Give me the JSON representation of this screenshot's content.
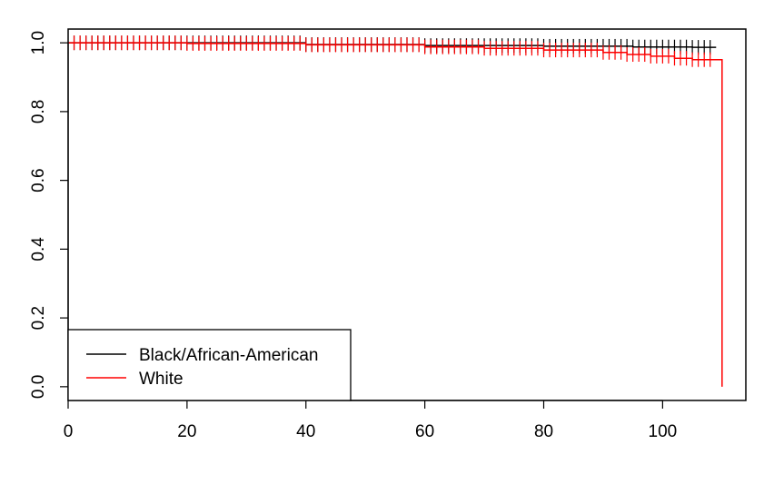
{
  "chart_data": {
    "type": "line",
    "title": "",
    "xlabel": "",
    "ylabel": "",
    "xlim": [
      0,
      114
    ],
    "ylim": [
      -0.04,
      1.04
    ],
    "x_ticks": [
      0,
      20,
      40,
      60,
      80,
      100
    ],
    "y_ticks": [
      0.0,
      0.2,
      0.4,
      0.6,
      0.8,
      1.0
    ],
    "x_tick_labels": [
      "0",
      "20",
      "40",
      "60",
      "80",
      "100"
    ],
    "y_tick_labels": [
      "0.0",
      "0.2",
      "0.4",
      "0.6",
      "0.8",
      "1.0"
    ],
    "grid": false,
    "legend": {
      "position": "bottom-left"
    },
    "series": [
      {
        "name": "Black/African-American",
        "color": "#000000",
        "steps": [
          {
            "x": 0,
            "y": 1.0
          },
          {
            "x": 40,
            "y": 0.995
          },
          {
            "x": 60,
            "y": 0.992
          },
          {
            "x": 80,
            "y": 0.99
          },
          {
            "x": 95,
            "y": 0.988
          },
          {
            "x": 105,
            "y": 0.987
          },
          {
            "x": 109,
            "y": 0.987
          }
        ],
        "censor_times": [
          1,
          2,
          3,
          4,
          5,
          6,
          7,
          8,
          9,
          10,
          11,
          12,
          13,
          14,
          15,
          16,
          17,
          18,
          19,
          20,
          21,
          22,
          23,
          24,
          25,
          26,
          27,
          28,
          29,
          30,
          31,
          32,
          33,
          34,
          35,
          36,
          37,
          38,
          39,
          40,
          41,
          42,
          43,
          44,
          45,
          46,
          47,
          48,
          49,
          50,
          51,
          52,
          53,
          54,
          55,
          56,
          57,
          58,
          59,
          60,
          61,
          62,
          63,
          64,
          65,
          66,
          67,
          68,
          69,
          70,
          71,
          72,
          73,
          74,
          75,
          76,
          77,
          78,
          79,
          80,
          81,
          82,
          83,
          84,
          85,
          86,
          87,
          88,
          89,
          90,
          91,
          92,
          93,
          94,
          95,
          96,
          97,
          98,
          99,
          100,
          101,
          102,
          103,
          104,
          105,
          106,
          107,
          108
        ]
      },
      {
        "name": "White",
        "color": "#ff0000",
        "steps": [
          {
            "x": 0,
            "y": 1.0
          },
          {
            "x": 20,
            "y": 0.998
          },
          {
            "x": 40,
            "y": 0.994
          },
          {
            "x": 60,
            "y": 0.988
          },
          {
            "x": 70,
            "y": 0.984
          },
          {
            "x": 80,
            "y": 0.979
          },
          {
            "x": 90,
            "y": 0.972
          },
          {
            "x": 94,
            "y": 0.966
          },
          {
            "x": 98,
            "y": 0.961
          },
          {
            "x": 102,
            "y": 0.955
          },
          {
            "x": 105,
            "y": 0.951
          },
          {
            "x": 110,
            "y": 0.0
          }
        ],
        "censor_times": [
          1,
          2,
          3,
          4,
          5,
          6,
          7,
          8,
          9,
          10,
          11,
          12,
          13,
          14,
          15,
          16,
          17,
          18,
          19,
          20,
          21,
          22,
          23,
          24,
          25,
          26,
          27,
          28,
          29,
          30,
          31,
          32,
          33,
          34,
          35,
          36,
          37,
          38,
          39,
          40,
          41,
          42,
          43,
          44,
          45,
          46,
          47,
          48,
          49,
          50,
          51,
          52,
          53,
          54,
          55,
          56,
          57,
          58,
          59,
          60,
          61,
          62,
          63,
          64,
          65,
          66,
          67,
          68,
          69,
          70,
          71,
          72,
          73,
          74,
          75,
          76,
          77,
          78,
          79,
          80,
          81,
          82,
          83,
          84,
          85,
          86,
          87,
          88,
          89,
          90,
          91,
          92,
          93,
          94,
          95,
          96,
          97,
          98,
          99,
          100,
          101,
          102,
          103,
          104,
          105,
          106,
          107,
          108
        ]
      }
    ]
  },
  "legend": {
    "items": [
      {
        "label": "Black/African-American",
        "color": "#000000"
      },
      {
        "label": "White",
        "color": "#ff0000"
      }
    ]
  }
}
